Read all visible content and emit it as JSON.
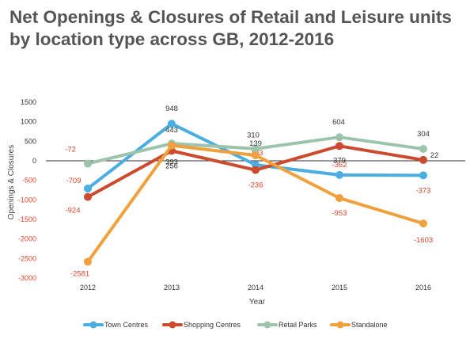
{
  "title": "Net Openings & Closures of Retail and Leisure units by location type across GB, 2012-2016",
  "chart_data": {
    "type": "line",
    "title": "Net Openings & Closures of Retail and Leisure units by location type across GB, 2012-2016",
    "xlabel": "Year",
    "ylabel": "Openings & Closures",
    "categories": [
      "2012",
      "2013",
      "2014",
      "2015",
      "2016"
    ],
    "ylim": [
      -3000,
      1500
    ],
    "yticks": [
      "1500",
      "1000",
      "500",
      "0",
      "-500",
      "-1000",
      "-1500",
      "-2000",
      "-2500",
      "-3000"
    ],
    "grid": false,
    "legend_position": "bottom",
    "series": [
      {
        "name": "Town Centres",
        "color": "#4aaee3",
        "values": [
          -709,
          948,
          -103,
          -362,
          -373
        ],
        "labels": [
          "-709",
          "948",
          "-103",
          "-362",
          "-373"
        ]
      },
      {
        "name": "Shopping Centres",
        "color": "#cc4a2e",
        "values": [
          -924,
          256,
          -236,
          379,
          22
        ],
        "labels": [
          "-924",
          "256",
          "-236",
          "379",
          "22"
        ]
      },
      {
        "name": "Retail Parks",
        "color": "#9cc4ad",
        "values": [
          -72,
          443,
          310,
          604,
          304
        ],
        "labels": [
          "-72",
          "443",
          "310",
          "604",
          "304"
        ]
      },
      {
        "name": "Standalone",
        "color": "#f0a03d",
        "values": [
          -2581,
          393,
          139,
          -953,
          -1603
        ],
        "labels": [
          "-2581",
          "393",
          "139",
          "-953",
          "-1603"
        ]
      }
    ]
  }
}
